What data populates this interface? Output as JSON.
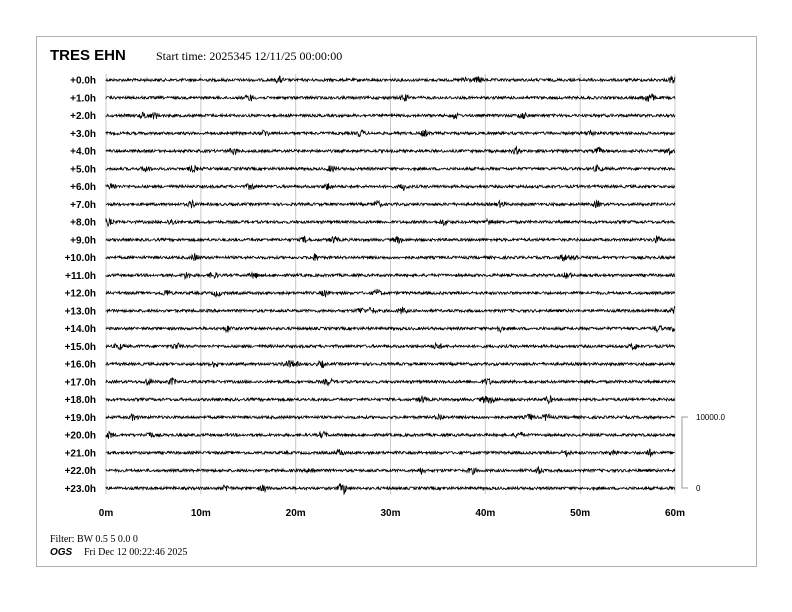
{
  "header": {
    "station": "TRES EHN",
    "start_time": "Start time: 2025345 12/11/25 00:00:00"
  },
  "footer": {
    "filter": "Filter: BW 0.5 5 0.0 0",
    "org": "OGS",
    "timestamp": "Fri Dec 12 00:22:46 2025"
  },
  "chart_data": {
    "type": "line",
    "title": "TRES EHN",
    "row_labels": [
      "+0.0h",
      "+1.0h",
      "+2.0h",
      "+3.0h",
      "+4.0h",
      "+5.0h",
      "+6.0h",
      "+7.0h",
      "+8.0h",
      "+9.0h",
      "+10.0h",
      "+11.0h",
      "+12.0h",
      "+13.0h",
      "+14.0h",
      "+15.0h",
      "+16.0h",
      "+17.0h",
      "+18.0h",
      "+19.0h",
      "+20.0h",
      "+21.0h",
      "+22.0h",
      "+23.0h"
    ],
    "x_ticks": [
      "0m",
      "10m",
      "20m",
      "30m",
      "40m",
      "50m",
      "60m"
    ],
    "xlim": [
      0,
      60
    ],
    "grid": true,
    "scale_bar": {
      "top_label": "10000.0",
      "bottom_label": "0"
    },
    "trace_color": "#000000",
    "grid_color": "#c8c8c8"
  }
}
